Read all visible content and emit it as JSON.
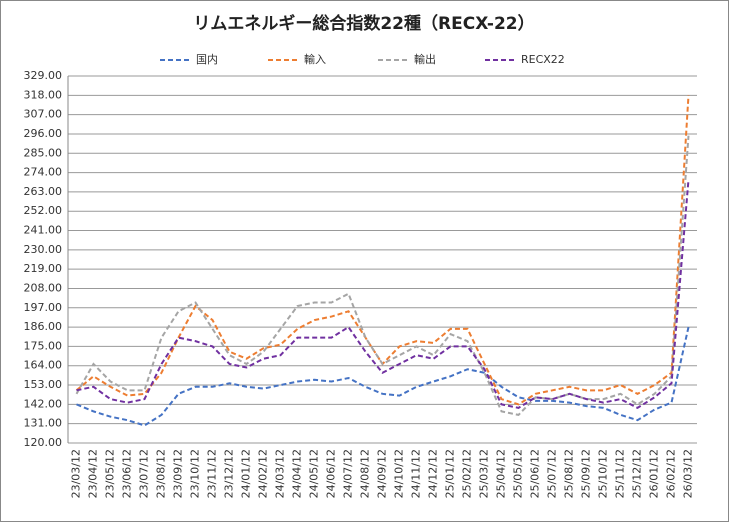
{
  "chart_data": {
    "type": "line",
    "title": "リムエネルギー総合指数22種（RECX-22）",
    "categories": [
      "23/03/12",
      "23/04/12",
      "23/05/12",
      "23/06/12",
      "23/07/12",
      "23/08/12",
      "23/09/12",
      "23/10/12",
      "23/11/12",
      "23/12/12",
      "24/01/12",
      "24/02/12",
      "24/03/12",
      "24/04/12",
      "24/05/12",
      "24/06/12",
      "24/07/12",
      "24/08/12",
      "24/09/12",
      "24/10/12",
      "24/11/12",
      "24/12/12",
      "25/01/12",
      "25/02/12",
      "25/03/12",
      "25/04/12",
      "25/05/12",
      "25/06/12",
      "25/07/12",
      "25/08/12",
      "25/09/12",
      "25/10/12",
      "25/11/12",
      "25/12/12",
      "26/01/12",
      "26/02/12",
      "26/03/12"
    ],
    "series": [
      {
        "name": "国内",
        "color": "#4472c4",
        "values": [
          142,
          138,
          135,
          133,
          130,
          136,
          148,
          152,
          152,
          154,
          152,
          151,
          153,
          155,
          156,
          155,
          157,
          152,
          148,
          147,
          152,
          155,
          158,
          162,
          160,
          152,
          146,
          144,
          144,
          143,
          141,
          140,
          136,
          133,
          139,
          143,
          186
        ]
      },
      {
        "name": "輸入",
        "color": "#ed7d31",
        "values": [
          150,
          158,
          152,
          147,
          148,
          160,
          180,
          198,
          190,
          172,
          168,
          174,
          176,
          185,
          190,
          192,
          195,
          180,
          165,
          175,
          178,
          177,
          185,
          185,
          165,
          145,
          142,
          148,
          150,
          152,
          150,
          150,
          153,
          148,
          153,
          160,
          318
        ]
      },
      {
        "name": "輸出",
        "color": "#a5a5a5",
        "values": [
          148,
          165,
          155,
          150,
          150,
          180,
          195,
          200,
          185,
          170,
          165,
          172,
          185,
          198,
          200,
          200,
          205,
          180,
          165,
          170,
          175,
          170,
          182,
          178,
          160,
          138,
          136,
          146,
          145,
          148,
          145,
          145,
          148,
          142,
          148,
          158,
          295
        ]
      },
      {
        "name": "RECX22",
        "color": "#7030a0",
        "values": [
          150,
          152,
          145,
          143,
          145,
          165,
          180,
          178,
          175,
          165,
          163,
          168,
          170,
          180,
          180,
          180,
          186,
          172,
          160,
          165,
          170,
          168,
          175,
          175,
          162,
          142,
          140,
          146,
          145,
          148,
          145,
          143,
          145,
          140,
          146,
          154,
          270
        ]
      }
    ],
    "ylim": [
      120,
      329
    ],
    "yticks": [
      {
        "value": 120,
        "label": "120.00"
      },
      {
        "value": 131,
        "label": "131.00"
      },
      {
        "value": 142,
        "label": "142.00"
      },
      {
        "value": 153,
        "label": "153.00"
      },
      {
        "value": 164,
        "label": "164.00"
      },
      {
        "value": 175,
        "label": "175.00"
      },
      {
        "value": 186,
        "label": "186.00"
      },
      {
        "value": 197,
        "label": "197.00"
      },
      {
        "value": 208,
        "label": "208.00"
      },
      {
        "value": 219,
        "label": "219.00"
      },
      {
        "value": 230,
        "label": "230.00"
      },
      {
        "value": 241,
        "label": "241.00"
      },
      {
        "value": 252,
        "label": "252.00"
      },
      {
        "value": 263,
        "label": "263.00"
      },
      {
        "value": 274,
        "label": "274.00"
      },
      {
        "value": 285,
        "label": "285.00"
      },
      {
        "value": 296,
        "label": "296.00"
      },
      {
        "value": 307,
        "label": "307.00"
      },
      {
        "value": 318,
        "label": "318.00"
      },
      {
        "value": 329,
        "label": "329.00"
      }
    ],
    "grid": true
  }
}
